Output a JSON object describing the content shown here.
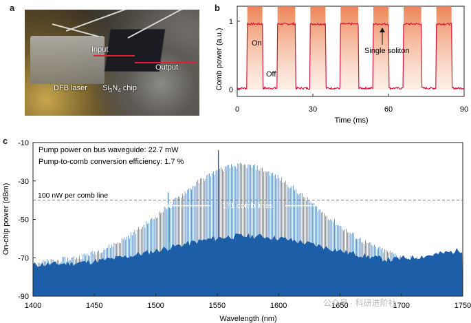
{
  "panels": {
    "a": "a",
    "b": "b",
    "c": "c"
  },
  "photo": {
    "labels": {
      "input": "Input",
      "output": "Output",
      "laser": "DFB laser",
      "chip_prefix": "Si",
      "chip_sub1": "3",
      "chip_mid": "N",
      "chip_sub2": "4",
      "chip_suffix": " chip"
    }
  },
  "colors": {
    "trace": "#d7163a",
    "fill": "#ee8a5a",
    "spectrum": "#1c5fa8",
    "dashed": "#777777"
  },
  "watermark": "公众号 · 科研进阶社",
  "chart_data": [
    {
      "type": "line",
      "id": "b",
      "xlabel": "Time (ms)",
      "ylabel": "Comb power (a.u.)",
      "xlim": [
        0,
        90
      ],
      "ylim": [
        -0.1,
        1.22
      ],
      "xticks": [
        0,
        30,
        60,
        90
      ],
      "yticks": [
        0,
        1
      ],
      "on_level": 0.96,
      "off_level": 0.02,
      "on_intervals": [
        [
          4,
          10
        ],
        [
          16,
          23
        ],
        [
          29,
          35
        ],
        [
          41,
          48
        ],
        [
          54,
          60
        ],
        [
          66,
          73
        ],
        [
          79,
          85
        ]
      ],
      "annotations": {
        "on": "On",
        "off": "Off",
        "soliton": "Single soliton"
      }
    },
    {
      "type": "bar",
      "id": "c",
      "xlabel": "Wavelength (nm)",
      "ylabel": "On-chip power (dBm)",
      "xlim": [
        1400,
        1750
      ],
      "ylim": [
        -90,
        -10
      ],
      "xticks": [
        1400,
        1450,
        1500,
        1550,
        1600,
        1650,
        1700,
        1750
      ],
      "yticks": [
        -10,
        -30,
        -50,
        -70,
        -90
      ],
      "threshold_dbm": -40,
      "envelope": {
        "peak_wavelength": 1570,
        "peak_dbm": -22,
        "floor_dbm": -76,
        "pump_wavelength": 1551,
        "pump_dbm": -14
      },
      "annotations": {
        "pump_power": "Pump power on bus waveguide: 22.7 mW",
        "efficiency": "Pump-to-comb conversion efficiency: 1.7 %",
        "threshold": "100 nW per comb line",
        "comb_lines": "171 comb lines"
      },
      "comb_range": [
        1508,
        1643
      ]
    }
  ]
}
